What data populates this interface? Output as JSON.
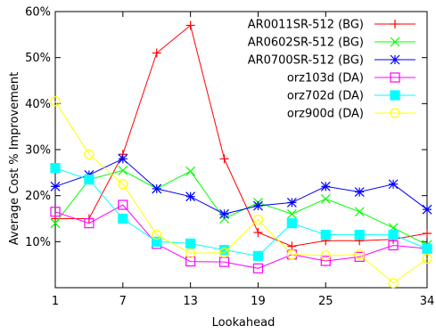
{
  "chart_data": {
    "type": "line",
    "xlabel": "Lookahead",
    "ylabel": "Average Cost % Improvement",
    "xlim": [
      1,
      34
    ],
    "ylim": [
      0,
      60
    ],
    "x_ticks": [
      1,
      7,
      13,
      19,
      25,
      34
    ],
    "y_ticks": [
      {
        "value": 10,
        "label": "10%"
      },
      {
        "value": 20,
        "label": "20%"
      },
      {
        "value": 30,
        "label": "30%"
      },
      {
        "value": 40,
        "label": "40%"
      },
      {
        "value": 50,
        "label": "50%"
      },
      {
        "value": 60,
        "label": "60%"
      }
    ],
    "grid": false,
    "legend_position": "top-right",
    "x": [
      1,
      4,
      7,
      10,
      13,
      16,
      19,
      22,
      25,
      28,
      31,
      34
    ],
    "series": [
      {
        "name": "AR0011SR-512 (BG)",
        "color": "#ff0000",
        "marker": "plus",
        "values": [
          15,
          15,
          29,
          51,
          57,
          28,
          12,
          9,
          10.2,
          10.2,
          10.5,
          11.8
        ]
      },
      {
        "name": "AR0602SR-512 (BG)",
        "color": "#00ff00",
        "marker": "x",
        "values": [
          14,
          23.5,
          25.5,
          21.5,
          25.3,
          15,
          18.5,
          16,
          19.3,
          16.5,
          13,
          9.3
        ]
      },
      {
        "name": "AR0700SR-512 (BG)",
        "color": "#0000ff",
        "marker": "star",
        "values": [
          22,
          24.5,
          28,
          21.5,
          19.8,
          16,
          17.8,
          18.5,
          22,
          20.8,
          22.5,
          17
        ]
      },
      {
        "name": "orz103d (DA)",
        "color": "#ff00ff",
        "marker": "square-open",
        "values": [
          16.5,
          14,
          18,
          9.5,
          5.7,
          5.6,
          4.2,
          7.2,
          5.8,
          6.7,
          9.2,
          8.5
        ]
      },
      {
        "name": "orz702d (DA)",
        "color": "#00ffff",
        "marker": "square-filled",
        "values": [
          26,
          23.5,
          15,
          10,
          9.6,
          8.2,
          6.9,
          14,
          11.5,
          11.5,
          11.5,
          8.5
        ]
      },
      {
        "name": "orz900d (DA)",
        "color": "#ffff00",
        "marker": "circle-open",
        "values": [
          40.5,
          29,
          22.5,
          11.5,
          7.5,
          7.6,
          14.8,
          7.2,
          7,
          7.2,
          1,
          6.3
        ]
      }
    ]
  }
}
